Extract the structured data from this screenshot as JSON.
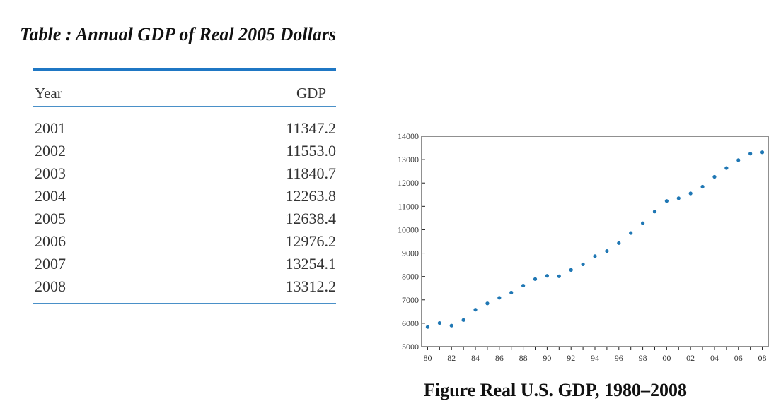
{
  "table": {
    "title": "Table : Annual GDP of Real 2005 Dollars",
    "headers": {
      "year": "Year",
      "gdp": "GDP"
    },
    "rows": [
      {
        "year": "2001",
        "gdp": "11347.2"
      },
      {
        "year": "2002",
        "gdp": "11553.0"
      },
      {
        "year": "2003",
        "gdp": "11840.7"
      },
      {
        "year": "2004",
        "gdp": "12263.8"
      },
      {
        "year": "2005",
        "gdp": "12638.4"
      },
      {
        "year": "2006",
        "gdp": "12976.2"
      },
      {
        "year": "2007",
        "gdp": "13254.1"
      },
      {
        "year": "2008",
        "gdp": "13312.2"
      }
    ],
    "rule_color": "#1f77c4"
  },
  "figure": {
    "caption": "Figure  Real U.S. GDP, 1980–2008"
  },
  "chart_data": {
    "type": "scatter",
    "title": "",
    "xlabel": "",
    "ylabel": "",
    "x": [
      1980,
      1981,
      1982,
      1983,
      1984,
      1985,
      1986,
      1987,
      1988,
      1989,
      1990,
      1991,
      1992,
      1993,
      1994,
      1995,
      1996,
      1997,
      1998,
      1999,
      2000,
      2001,
      2002,
      2003,
      2004,
      2005,
      2006,
      2007,
      2008
    ],
    "series": [
      {
        "color": "#1f77b4",
        "values": [
          5840,
          6010,
          5900,
          6140,
          6580,
          6850,
          7090,
          7310,
          7610,
          7890,
          8030,
          8010,
          8280,
          8520,
          8870,
          9090,
          9430,
          9860,
          10280,
          10780,
          11230,
          11347.2,
          11553.0,
          11840.7,
          12263.8,
          12638.4,
          12976.2,
          13254.1,
          13312.2
        ]
      }
    ],
    "xlim": [
      1979.5,
      2008.5
    ],
    "ylim": [
      5000,
      14000
    ],
    "y_ticks": [
      5000,
      6000,
      7000,
      8000,
      9000,
      10000,
      11000,
      12000,
      13000,
      14000
    ],
    "x_ticks": [
      1980,
      1982,
      1984,
      1986,
      1988,
      1990,
      1992,
      1994,
      1996,
      1998,
      2000,
      2002,
      2004,
      2006,
      2008
    ],
    "x_tick_labels": [
      "80",
      "82",
      "84",
      "86",
      "88",
      "90",
      "92",
      "94",
      "96",
      "98",
      "00",
      "02",
      "04",
      "06",
      "08"
    ],
    "grid": false,
    "legend": "none"
  }
}
